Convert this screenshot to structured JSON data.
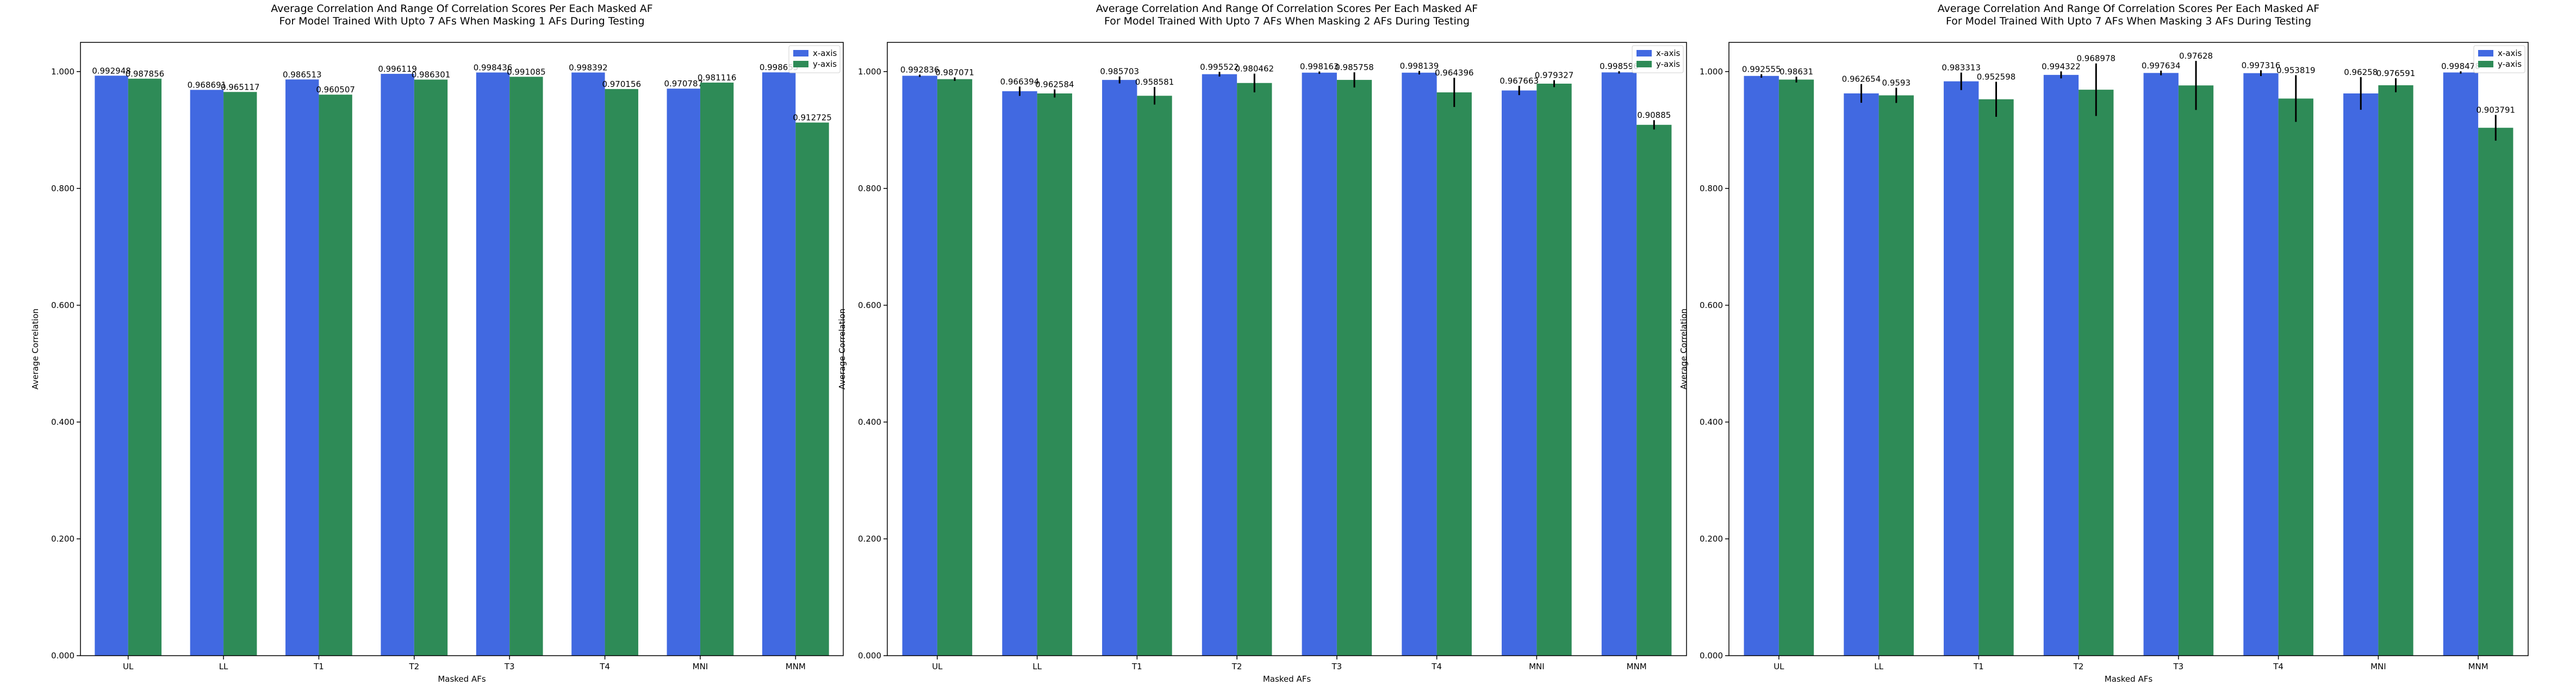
{
  "chart_data": [
    {
      "type": "bar",
      "title": "Average Correlation And Range Of Correlation Scores Per Each Masked AF",
      "subtitle": "For Model Trained With Upto 7 AFs When Masking 1 AFs During Testing",
      "xlabel": "Masked AFs",
      "ylabel": "Average Correlation",
      "ylim": [
        0,
        1.05
      ],
      "yticks": [
        "0.000",
        "0.200",
        "0.400",
        "0.600",
        "0.800",
        "1.000"
      ],
      "categories": [
        "UL",
        "LL",
        "T1",
        "T2",
        "T3",
        "T4",
        "MNI",
        "MNM"
      ],
      "legend_position": "top-right",
      "grid": false,
      "series": [
        {
          "name": "x-axis",
          "color": "#4169e1",
          "values": [
            0.992948,
            0.968691,
            0.986513,
            0.996119,
            0.998436,
            0.998392,
            0.970787,
            0.998655
          ],
          "labels": [
            "0.992948",
            "0.968691",
            "0.986513",
            "0.996119",
            "0.998436",
            "0.998392",
            "0.970787",
            "0.998655"
          ],
          "errors": [
            0,
            0,
            0,
            0,
            0,
            0,
            0,
            0
          ]
        },
        {
          "name": "y-axis",
          "color": "#2e8b57",
          "values": [
            0.987856,
            0.965117,
            0.960507,
            0.986301,
            0.991085,
            0.970156,
            0.981116,
            0.912725
          ],
          "labels": [
            "0.987856",
            "0.965117",
            "0.960507",
            "0.986301",
            "0.991085",
            "0.970156",
            "0.981116",
            "0.912725"
          ],
          "errors": [
            0,
            0,
            0,
            0,
            0,
            0,
            0,
            0
          ]
        }
      ]
    },
    {
      "type": "bar",
      "title": "Average Correlation And Range Of Correlation Scores Per Each Masked AF",
      "subtitle": "For Model Trained With Upto 7 AFs When Masking 2 AFs During Testing",
      "xlabel": "Masked AFs",
      "ylabel": "Average Correlation",
      "ylim": [
        0,
        1.05
      ],
      "yticks": [
        "0.000",
        "0.200",
        "0.400",
        "0.600",
        "0.800",
        "1.000"
      ],
      "categories": [
        "UL",
        "LL",
        "T1",
        "T2",
        "T3",
        "T4",
        "MNI",
        "MNM"
      ],
      "legend_position": "top-right",
      "grid": false,
      "series": [
        {
          "name": "x-axis",
          "color": "#4169e1",
          "values": [
            0.992836,
            0.966394,
            0.985703,
            0.995522,
            0.998163,
            0.998139,
            0.967663,
            0.998596
          ],
          "labels": [
            "0.992836",
            "0.966394",
            "0.985703",
            "0.995522",
            "0.998163",
            "0.998139",
            "0.967663",
            "0.998596"
          ],
          "errors": [
            0.002,
            0.008,
            0.006,
            0.004,
            0.002,
            0.003,
            0.008,
            0.002
          ]
        },
        {
          "name": "y-axis",
          "color": "#2e8b57",
          "values": [
            0.987071,
            0.962584,
            0.958581,
            0.980462,
            0.985758,
            0.964396,
            0.979327,
            0.90885
          ],
          "labels": [
            "0.987071",
            "0.962584",
            "0.958581",
            "0.980462",
            "0.985758",
            "0.964396",
            "0.979327",
            "0.90885"
          ],
          "errors": [
            0.003,
            0.007,
            0.015,
            0.016,
            0.013,
            0.025,
            0.006,
            0.008
          ]
        }
      ]
    },
    {
      "type": "bar",
      "title": "Average Correlation And Range Of Correlation Scores Per Each Masked AF",
      "subtitle": "For Model Trained With Upto 7 AFs When Masking 3 AFs During Testing",
      "xlabel": "Masked AFs",
      "ylabel": "Average Correlation",
      "ylim": [
        0,
        1.05
      ],
      "yticks": [
        "0.000",
        "0.200",
        "0.400",
        "0.600",
        "0.800",
        "1.000"
      ],
      "categories": [
        "UL",
        "LL",
        "T1",
        "T2",
        "T3",
        "T4",
        "MNI",
        "MNM"
      ],
      "legend_position": "top-right",
      "grid": false,
      "series": [
        {
          "name": "x-axis",
          "color": "#4169e1",
          "values": [
            0.992555,
            0.962654,
            0.983313,
            0.994322,
            0.997634,
            0.997316,
            0.96258,
            0.998478
          ],
          "labels": [
            "0.992555",
            "0.962654",
            "0.983313",
            "0.994322",
            "0.997634",
            "0.997316",
            "0.96258",
            "0.998478"
          ],
          "errors": [
            0.003,
            0.016,
            0.015,
            0.006,
            0.004,
            0.005,
            0.028,
            0.002
          ]
        },
        {
          "name": "y-axis",
          "color": "#2e8b57",
          "values": [
            0.98631,
            0.9593,
            0.952598,
            0.968978,
            0.97628,
            0.953819,
            0.976591,
            0.903791
          ],
          "labels": [
            "0.98631",
            "0.9593",
            "0.952598",
            "0.968978",
            "0.97628",
            "0.953819",
            "0.976591",
            "0.903791"
          ],
          "errors": [
            0.005,
            0.013,
            0.03,
            0.045,
            0.042,
            0.04,
            0.012,
            0.022
          ]
        }
      ]
    }
  ]
}
